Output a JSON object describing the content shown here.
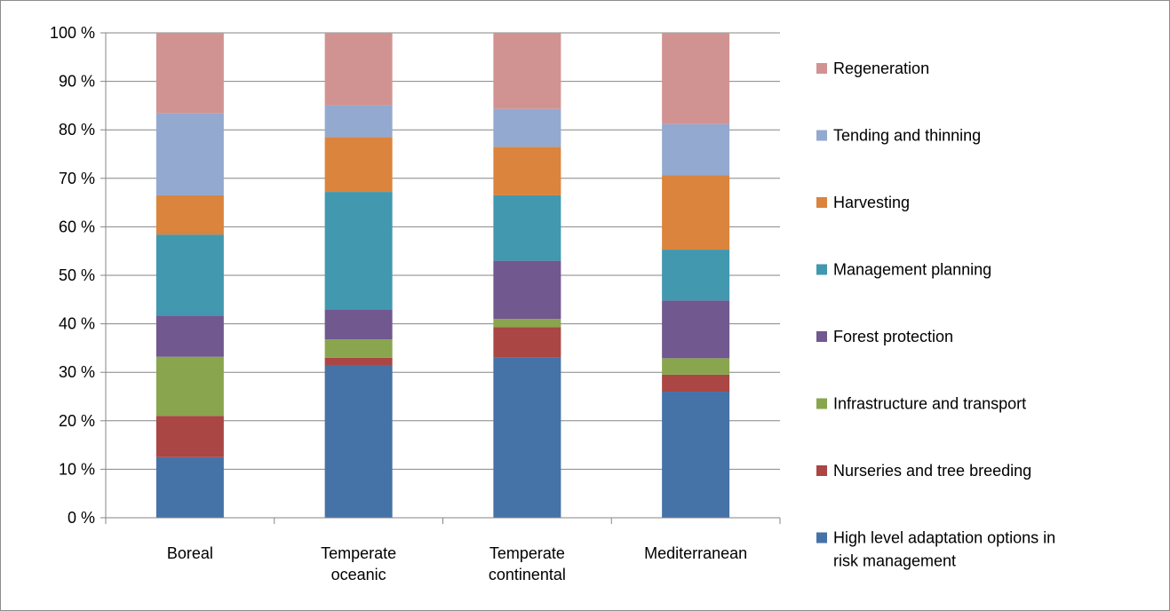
{
  "chart_data": {
    "type": "bar",
    "stacked": true,
    "percent": true,
    "categories": [
      [
        "Boreal"
      ],
      [
        "Temperate",
        "oceanic"
      ],
      [
        "Temperate",
        "continental"
      ],
      [
        "Mediterranean"
      ]
    ],
    "yticks": [
      "0 %",
      "10 %",
      "20 %",
      "30 %",
      "40 %",
      "50 %",
      "60 %",
      "70 %",
      "80 %",
      "90 %",
      "100 %"
    ],
    "ylim": [
      0,
      100
    ],
    "grid": true,
    "legend_position": "right",
    "series": [
      {
        "name": "High level adaptation options in risk management",
        "color": "#4572a7",
        "values": [
          12.5,
          31.5,
          33.0,
          26.0
        ]
      },
      {
        "name": "Nurseries and tree breeding",
        "color": "#aa4643",
        "values": [
          8.5,
          1.5,
          6.3,
          3.5
        ]
      },
      {
        "name": "Infrastructure and transport",
        "color": "#89a54e",
        "values": [
          12.2,
          3.8,
          1.7,
          3.4
        ]
      },
      {
        "name": "Forest protection",
        "color": "#71588f",
        "values": [
          8.5,
          6.2,
          12.0,
          11.9
        ]
      },
      {
        "name": "Management planning",
        "color": "#4198af",
        "values": [
          16.7,
          24.2,
          13.5,
          10.5
        ]
      },
      {
        "name": "Harvesting",
        "color": "#db843d",
        "values": [
          8.1,
          11.3,
          10.0,
          15.3
        ]
      },
      {
        "name": "Tending and thinning",
        "color": "#93a9cf",
        "values": [
          16.9,
          6.5,
          7.8,
          10.6
        ]
      },
      {
        "name": "Regeneration",
        "color": "#d19392",
        "values": [
          16.6,
          15.0,
          15.7,
          18.8
        ]
      }
    ]
  }
}
